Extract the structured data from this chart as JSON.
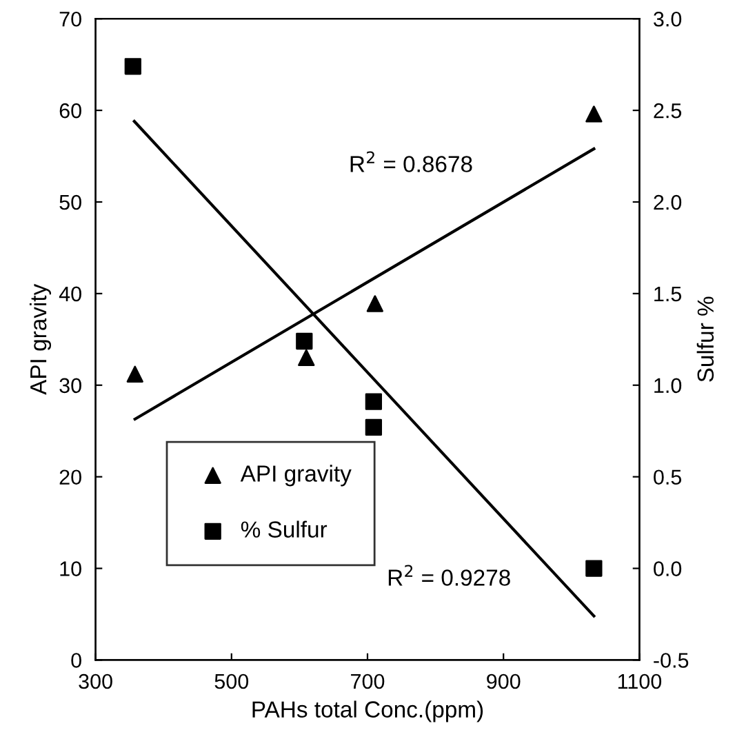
{
  "chart_data": {
    "type": "scatter",
    "xlabel": "PAHs total Conc.(ppm)",
    "ylabel": "API gravity",
    "y2label": "Sulfur %",
    "xlim": [
      300,
      1100
    ],
    "xticks": [
      300,
      500,
      700,
      900,
      1100
    ],
    "ylim": [
      0,
      70
    ],
    "yticks": [
      0,
      10,
      20,
      30,
      40,
      50,
      60,
      70
    ],
    "y2lim": [
      -0.5,
      3.0
    ],
    "y2ticks": [
      {
        "value": -0.5,
        "label": "-0.5"
      },
      {
        "value": 0,
        "label": "0.0"
      },
      {
        "value": 0.5,
        "label": "0.5"
      },
      {
        "value": 1.0,
        "label": "1.0"
      },
      {
        "value": 1.5,
        "label": "1.5"
      },
      {
        "value": 2.0,
        "label": "2.0"
      },
      {
        "value": 2.5,
        "label": "2.5"
      },
      {
        "value": 3.0,
        "label": "3.0"
      }
    ],
    "legend": "bottom left",
    "grid": false,
    "series": [
      {
        "name": "API gravity",
        "marker": "triangle",
        "color": "#000000",
        "x": [
          358,
          610,
          711,
          1033
        ],
        "values": [
          31.2,
          33.0,
          38.9,
          59.6
        ]
      },
      {
        "name": "% Sulfur",
        "marker": "square",
        "color": "#000000",
        "axis": "y2",
        "x": [
          355,
          607,
          709,
          709,
          1033
        ],
        "values": [
          2.74,
          1.24,
          0.91,
          0.77,
          0.0
        ]
      },
      {
        "type": "line",
        "color": "#000000",
        "x": [
          358,
          1033
        ],
        "values": [
          26.3,
          55.8
        ]
      },
      {
        "type": "line",
        "color": "#000000",
        "axis": "y2",
        "x": [
          357,
          1033
        ],
        "values": [
          2.44,
          -0.26
        ]
      }
    ],
    "annotations": [
      "R$^{2}$ = 0.8678",
      "R$^{2}$ = 0.9278"
    ]
  }
}
